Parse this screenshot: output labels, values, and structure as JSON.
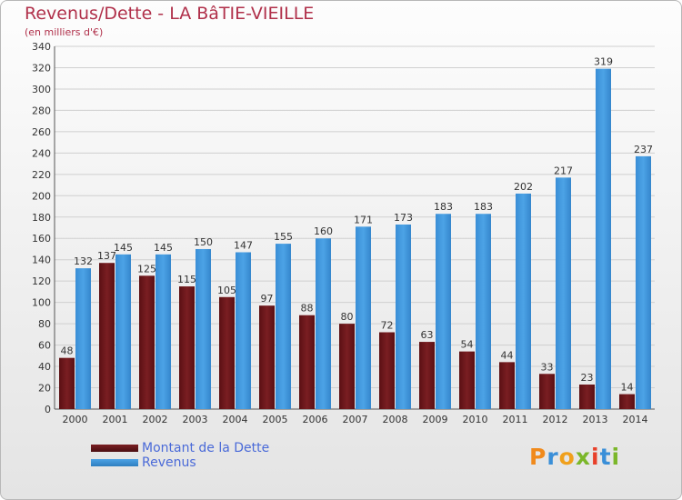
{
  "title": "Revenus/Dette - LA BâTIE-VIEILLE",
  "subtitle": "(en milliers d'€)",
  "logo_text": "Proxiti",
  "colors": {
    "dette": "#7a1e22",
    "revenus": "#4ca3e6",
    "title": "#b0304a",
    "legend_text": "#4a6ad8"
  },
  "chart_data": {
    "type": "bar",
    "categories": [
      "2000",
      "2001",
      "2002",
      "2003",
      "2004",
      "2005",
      "2006",
      "2007",
      "2008",
      "2009",
      "2010",
      "2011",
      "2012",
      "2013",
      "2014"
    ],
    "series": [
      {
        "name": "Montant de la Dette",
        "values": [
          48,
          137,
          125,
          115,
          105,
          97,
          88,
          80,
          72,
          63,
          54,
          44,
          33,
          23,
          14
        ]
      },
      {
        "name": "Revenus",
        "values": [
          132,
          145,
          145,
          150,
          147,
          155,
          160,
          171,
          173,
          183,
          183,
          202,
          217,
          319,
          237
        ]
      }
    ],
    "ylim": [
      0,
      340
    ],
    "yticks": [
      0,
      20,
      40,
      60,
      80,
      100,
      120,
      140,
      160,
      180,
      200,
      220,
      240,
      260,
      280,
      300,
      320,
      340
    ],
    "grid": true,
    "legend": "bottom-left"
  }
}
